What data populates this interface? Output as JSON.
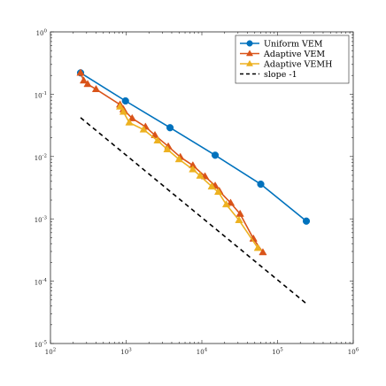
{
  "chart_data": {
    "type": "line",
    "x_scale": "log",
    "y_scale": "log",
    "xlim": [
      100,
      1000000
    ],
    "ylim": [
      1e-05,
      1
    ],
    "grid": false,
    "legend_position": "top-right",
    "x_ticks": [
      {
        "value": 100,
        "base": "10",
        "exp": "2"
      },
      {
        "value": 1000,
        "base": "10",
        "exp": "3"
      },
      {
        "value": 10000,
        "base": "10",
        "exp": "4"
      },
      {
        "value": 100000,
        "base": "10",
        "exp": "5"
      },
      {
        "value": 1000000,
        "base": "10",
        "exp": "6"
      }
    ],
    "y_ticks": [
      {
        "value": 1,
        "base": "10",
        "exp": "0"
      },
      {
        "value": 0.1,
        "base": "10",
        "exp": "-1"
      },
      {
        "value": 0.01,
        "base": "10",
        "exp": "-2"
      },
      {
        "value": 0.001,
        "base": "10",
        "exp": "-3"
      },
      {
        "value": 0.0001,
        "base": "10",
        "exp": "-4"
      },
      {
        "value": 1e-05,
        "base": "10",
        "exp": "-5"
      }
    ],
    "series": [
      {
        "name": "Uniform VEM",
        "color": "#0072BD",
        "marker": "circle",
        "dash": "solid",
        "x": [
          250,
          980,
          3800,
          15000,
          60000,
          240000
        ],
        "y": [
          0.22,
          0.078,
          0.029,
          0.0105,
          0.0036,
          0.00092
        ]
      },
      {
        "name": "Adaptive VEM",
        "color": "#D95319",
        "marker": "triangle",
        "dash": "solid",
        "x": [
          250,
          275,
          310,
          400,
          830,
          920,
          1200,
          1800,
          2400,
          3600,
          5200,
          7600,
          11000,
          15000,
          17000,
          24000,
          32000,
          48000,
          64000
        ],
        "y": [
          0.22,
          0.165,
          0.145,
          0.12,
          0.068,
          0.057,
          0.041,
          0.03,
          0.022,
          0.0145,
          0.0098,
          0.0072,
          0.0048,
          0.0034,
          0.0028,
          0.0018,
          0.0012,
          0.00048,
          0.00029
        ]
      },
      {
        "name": "Adaptive VEMH",
        "color": "#EDB120",
        "marker": "triangle",
        "dash": "solid",
        "x": [
          830,
          920,
          1100,
          1700,
          2600,
          3500,
          5000,
          7600,
          9500,
          13500,
          16500,
          21000,
          31000,
          55000
        ],
        "y": [
          0.063,
          0.052,
          0.035,
          0.027,
          0.018,
          0.013,
          0.009,
          0.0062,
          0.0049,
          0.0033,
          0.0027,
          0.0017,
          0.00095,
          0.00034
        ]
      },
      {
        "name": "slope -1",
        "color": "#000000",
        "marker": "none",
        "dash": "dashed",
        "x": [
          250,
          240000
        ],
        "y": [
          0.042,
          4.37e-05
        ]
      }
    ]
  }
}
